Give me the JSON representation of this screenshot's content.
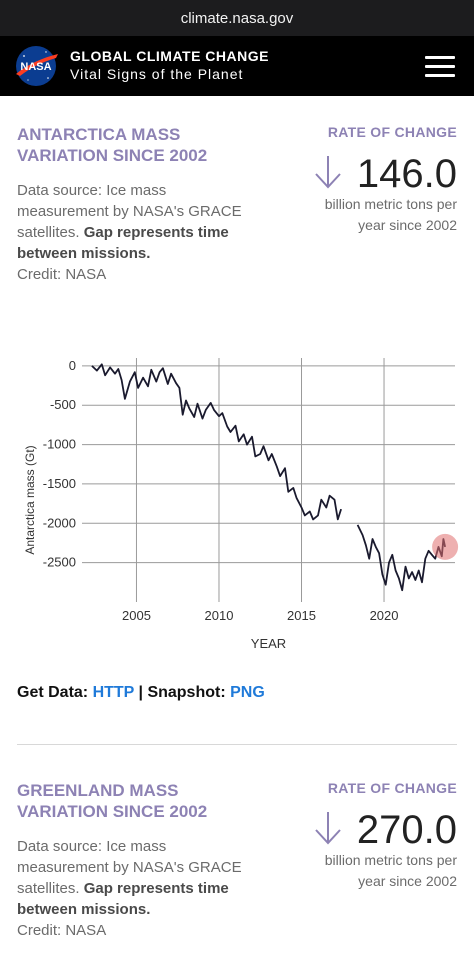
{
  "browser": {
    "url": "climate.nasa.gov"
  },
  "header": {
    "logo_text": "NASA",
    "title": "GLOBAL CLIMATE CHANGE",
    "subtitle": "Vital Signs of the Planet"
  },
  "antarctica": {
    "title_line1": "ANTARCTICA MASS",
    "title_line2": "VARIATION SINCE 2002",
    "desc_line1": "Data source: Ice mass",
    "desc_line2": "measurement by NASA's GRACE",
    "desc_line3_plain": "satellites. ",
    "desc_line3_bold": "Gap represents time",
    "desc_line4_bold": "between missions.",
    "credit": "Credit: NASA",
    "rate_label": "RATE OF CHANGE",
    "rate_value": "146.0",
    "rate_unit_line1": "billion metric tons per",
    "rate_unit_line2": "year since 2002"
  },
  "get_data": {
    "label1": "Get Data: ",
    "http": "HTTP",
    "sep": " | ",
    "label2": "Snapshot: ",
    "png": "PNG"
  },
  "greenland": {
    "title_line1": "GREENLAND MASS",
    "title_line2": "VARIATION SINCE 2002",
    "desc_line1": "Data source: Ice mass",
    "desc_line2": "measurement by NASA's GRACE",
    "desc_line3_plain": "satellites. ",
    "desc_line3_bold": "Gap represents time",
    "desc_line4_bold": "between missions.",
    "credit": "Credit: NASA",
    "rate_label": "RATE OF CHANGE",
    "rate_value": "270.0",
    "rate_unit_line1": "billion metric tons per",
    "rate_unit_line2": "year since 2002"
  },
  "colors": {
    "accent": "#8d82b4",
    "link": "#1f7ad9",
    "line": "#1a1a2e",
    "highlight": "#e07070",
    "header_bg": "#000000"
  },
  "chart_data": {
    "type": "line",
    "title": "",
    "xlabel": "YEAR",
    "ylabel": "Antarctica mass (Gt)",
    "xlim": [
      2001.7,
      2024.3
    ],
    "ylim": [
      -3000,
      100
    ],
    "xticks": [
      2005,
      2010,
      2015,
      2020
    ],
    "yticks": [
      0,
      -500,
      -1000,
      -1500,
      -2000,
      -2500
    ],
    "grid": true,
    "series": [
      {
        "name": "",
        "segments": [
          [
            [
              2002.3,
              0
            ],
            [
              2002.6,
              -60
            ],
            [
              2002.9,
              20
            ],
            [
              2003.1,
              -120
            ],
            [
              2003.4,
              -20
            ],
            [
              2003.7,
              -100
            ],
            [
              2003.9,
              -40
            ],
            [
              2004.1,
              -180
            ],
            [
              2004.3,
              -420
            ],
            [
              2004.6,
              -200
            ],
            [
              2004.9,
              -80
            ],
            [
              2005.1,
              -280
            ],
            [
              2005.4,
              -150
            ],
            [
              2005.7,
              -260
            ],
            [
              2005.9,
              -50
            ],
            [
              2006.2,
              -200
            ],
            [
              2006.4,
              -80
            ],
            [
              2006.6,
              -30
            ],
            [
              2006.9,
              -230
            ],
            [
              2007.1,
              -100
            ],
            [
              2007.4,
              -220
            ],
            [
              2007.6,
              -280
            ],
            [
              2007.8,
              -620
            ],
            [
              2008.0,
              -440
            ],
            [
              2008.2,
              -540
            ],
            [
              2008.5,
              -650
            ],
            [
              2008.7,
              -480
            ],
            [
              2009.0,
              -670
            ],
            [
              2009.2,
              -560
            ],
            [
              2009.5,
              -470
            ],
            [
              2009.7,
              -560
            ],
            [
              2010.0,
              -640
            ],
            [
              2010.2,
              -600
            ],
            [
              2010.5,
              -770
            ],
            [
              2010.7,
              -840
            ],
            [
              2011.0,
              -760
            ],
            [
              2011.2,
              -960
            ],
            [
              2011.5,
              -870
            ],
            [
              2011.7,
              -1000
            ],
            [
              2012.0,
              -900
            ],
            [
              2012.2,
              -1150
            ],
            [
              2012.5,
              -1120
            ],
            [
              2012.7,
              -1020
            ],
            [
              2013.0,
              -1200
            ],
            [
              2013.2,
              -1120
            ],
            [
              2013.5,
              -1280
            ],
            [
              2013.7,
              -1400
            ],
            [
              2014.0,
              -1300
            ],
            [
              2014.2,
              -1600
            ],
            [
              2014.5,
              -1550
            ],
            [
              2014.7,
              -1680
            ],
            [
              2015.0,
              -1800
            ],
            [
              2015.2,
              -1900
            ],
            [
              2015.5,
              -1850
            ],
            [
              2015.7,
              -1950
            ],
            [
              2016.0,
              -1900
            ],
            [
              2016.2,
              -1700
            ],
            [
              2016.5,
              -1800
            ],
            [
              2016.7,
              -1650
            ],
            [
              2017.0,
              -1700
            ],
            [
              2017.2,
              -1950
            ],
            [
              2017.4,
              -1820
            ]
          ],
          [
            [
              2018.4,
              -2020
            ],
            [
              2018.7,
              -2150
            ],
            [
              2018.9,
              -2280
            ],
            [
              2019.1,
              -2450
            ],
            [
              2019.3,
              -2200
            ],
            [
              2019.5,
              -2300
            ],
            [
              2019.7,
              -2380
            ],
            [
              2019.9,
              -2650
            ],
            [
              2020.1,
              -2780
            ],
            [
              2020.3,
              -2500
            ],
            [
              2020.5,
              -2400
            ],
            [
              2020.7,
              -2600
            ],
            [
              2020.9,
              -2700
            ],
            [
              2021.1,
              -2850
            ],
            [
              2021.3,
              -2550
            ],
            [
              2021.5,
              -2700
            ],
            [
              2021.7,
              -2620
            ],
            [
              2021.9,
              -2720
            ],
            [
              2022.1,
              -2600
            ],
            [
              2022.3,
              -2750
            ],
            [
              2022.5,
              -2450
            ],
            [
              2022.7,
              -2350
            ],
            [
              2022.9,
              -2400
            ],
            [
              2023.1,
              -2450
            ],
            [
              2023.3,
              -2300
            ],
            [
              2023.5,
              -2420
            ],
            [
              2023.6,
              -2200
            ],
            [
              2023.7,
              -2300
            ]
          ]
        ]
      }
    ],
    "highlight_point": [
      2023.7,
      -2300
    ]
  }
}
